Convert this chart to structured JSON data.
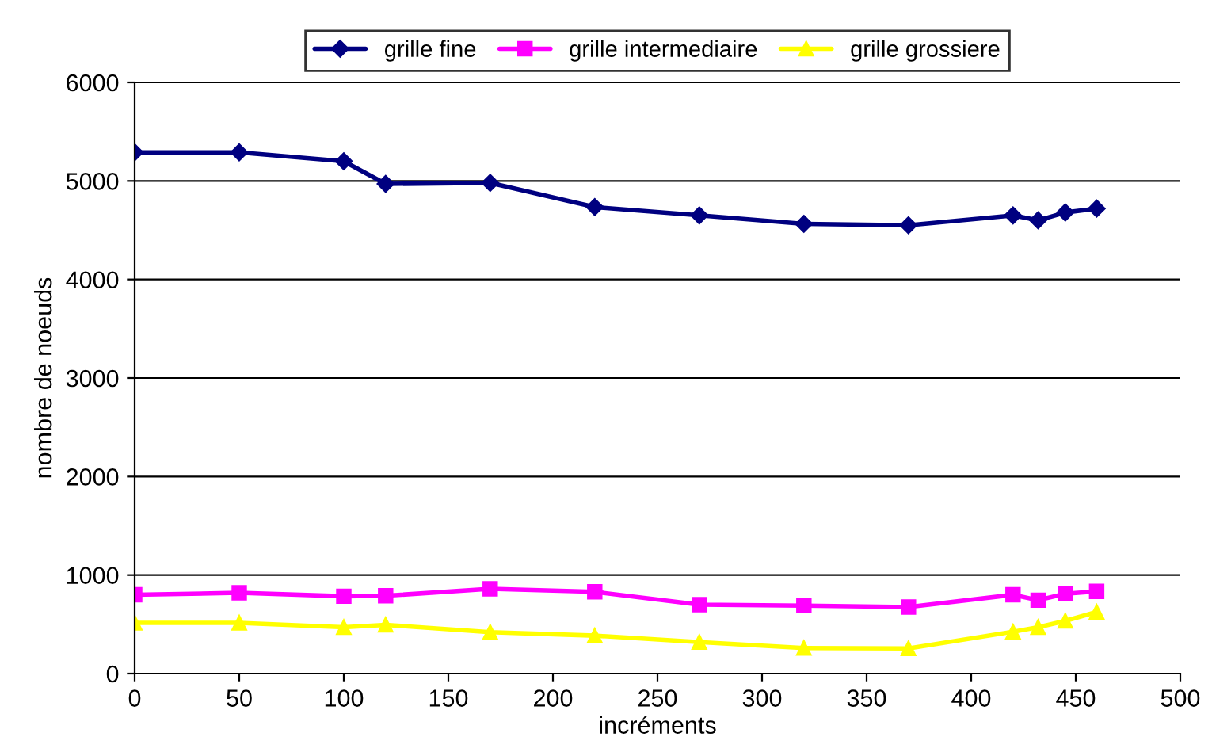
{
  "chart_data": {
    "type": "line",
    "xlabel": "incréments",
    "ylabel": "nombre de noeuds",
    "x": [
      0,
      50,
      100,
      120,
      170,
      220,
      270,
      320,
      370,
      420,
      432,
      445,
      460
    ],
    "series": [
      {
        "name": "grille fine",
        "color": "#000080",
        "marker": "diamond",
        "values": [
          5290,
          5290,
          5200,
          4970,
          4980,
          4735,
          4650,
          4565,
          4550,
          4650,
          4600,
          4680,
          4720
        ]
      },
      {
        "name": "grille intermediaire",
        "color": "#ff00ff",
        "marker": "square",
        "values": [
          800,
          820,
          785,
          790,
          860,
          830,
          700,
          690,
          675,
          800,
          745,
          810,
          835
        ]
      },
      {
        "name": "grille grossiere",
        "color": "#ffff00",
        "marker": "triangle",
        "values": [
          515,
          515,
          470,
          495,
          420,
          385,
          320,
          260,
          255,
          425,
          470,
          535,
          625
        ]
      }
    ],
    "xlim": [
      0,
      500
    ],
    "xticks": [
      0,
      50,
      100,
      150,
      200,
      250,
      300,
      350,
      400,
      450,
      500
    ],
    "ylim": [
      0,
      6000
    ],
    "yticks": [
      0,
      1000,
      2000,
      3000,
      4000,
      5000,
      6000
    ],
    "grid": "y",
    "legend": "top"
  }
}
